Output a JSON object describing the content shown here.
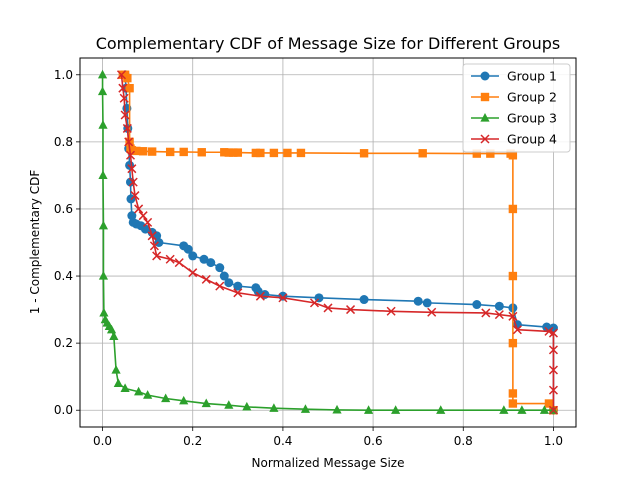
{
  "chart_data": {
    "type": "line",
    "title": "Complementary CDF of Message Size for Different Groups",
    "xlabel": "Normalized Message Size",
    "ylabel": "1 - Complementary CDF",
    "xlim": [
      -0.05,
      1.05
    ],
    "ylim": [
      -0.05,
      1.05
    ],
    "xticks": [
      "0.0",
      "0.2",
      "0.4",
      "0.6",
      "0.8",
      "1.0"
    ],
    "yticks": [
      "0.0",
      "0.2",
      "0.4",
      "0.6",
      "0.8",
      "1.0"
    ],
    "grid": true,
    "legend_position": "top-right",
    "series": [
      {
        "name": "Group 1",
        "color": "#1f77b4",
        "marker": "circle",
        "points": [
          [
            0.05,
            1.0
          ],
          [
            0.052,
            0.96
          ],
          [
            0.054,
            0.9
          ],
          [
            0.056,
            0.84
          ],
          [
            0.058,
            0.78
          ],
          [
            0.06,
            0.73
          ],
          [
            0.062,
            0.68
          ],
          [
            0.063,
            0.63
          ],
          [
            0.065,
            0.58
          ],
          [
            0.068,
            0.56
          ],
          [
            0.075,
            0.555
          ],
          [
            0.085,
            0.55
          ],
          [
            0.095,
            0.54
          ],
          [
            0.11,
            0.53
          ],
          [
            0.12,
            0.52
          ],
          [
            0.125,
            0.5
          ],
          [
            0.18,
            0.49
          ],
          [
            0.19,
            0.48
          ],
          [
            0.2,
            0.46
          ],
          [
            0.225,
            0.45
          ],
          [
            0.24,
            0.44
          ],
          [
            0.26,
            0.425
          ],
          [
            0.27,
            0.4
          ],
          [
            0.28,
            0.38
          ],
          [
            0.3,
            0.37
          ],
          [
            0.34,
            0.365
          ],
          [
            0.345,
            0.355
          ],
          [
            0.36,
            0.345
          ],
          [
            0.4,
            0.34
          ],
          [
            0.48,
            0.335
          ],
          [
            0.58,
            0.33
          ],
          [
            0.7,
            0.325
          ],
          [
            0.72,
            0.32
          ],
          [
            0.83,
            0.315
          ],
          [
            0.88,
            0.31
          ],
          [
            0.91,
            0.305
          ],
          [
            0.92,
            0.255
          ],
          [
            0.985,
            0.248
          ],
          [
            1.0,
            0.245
          ],
          [
            1.0,
            0.0
          ]
        ]
      },
      {
        "name": "Group 2",
        "color": "#ff7f0e",
        "marker": "square",
        "points": [
          [
            0.045,
            1.0
          ],
          [
            0.05,
            1.0
          ],
          [
            0.055,
            0.99
          ],
          [
            0.06,
            0.96
          ],
          [
            0.06,
            0.8
          ],
          [
            0.062,
            0.78
          ],
          [
            0.065,
            0.775
          ],
          [
            0.075,
            0.773
          ],
          [
            0.09,
            0.772
          ],
          [
            0.11,
            0.771
          ],
          [
            0.15,
            0.77
          ],
          [
            0.18,
            0.77
          ],
          [
            0.22,
            0.769
          ],
          [
            0.27,
            0.769
          ],
          [
            0.28,
            0.768
          ],
          [
            0.29,
            0.768
          ],
          [
            0.3,
            0.768
          ],
          [
            0.34,
            0.767
          ],
          [
            0.35,
            0.767
          ],
          [
            0.38,
            0.767
          ],
          [
            0.41,
            0.767
          ],
          [
            0.44,
            0.767
          ],
          [
            0.58,
            0.766
          ],
          [
            0.71,
            0.766
          ],
          [
            0.83,
            0.765
          ],
          [
            0.86,
            0.765
          ],
          [
            0.905,
            0.765
          ],
          [
            0.91,
            0.76
          ],
          [
            0.91,
            0.6
          ],
          [
            0.91,
            0.4
          ],
          [
            0.91,
            0.2
          ],
          [
            0.91,
            0.05
          ],
          [
            0.91,
            0.02
          ],
          [
            0.99,
            0.02
          ],
          [
            1.0,
            0.0
          ]
        ]
      },
      {
        "name": "Group 3",
        "color": "#2ca02c",
        "marker": "triangle",
        "points": [
          [
            0.0,
            1.0
          ],
          [
            0.0,
            0.95
          ],
          [
            0.001,
            0.85
          ],
          [
            0.001,
            0.7
          ],
          [
            0.002,
            0.55
          ],
          [
            0.002,
            0.4
          ],
          [
            0.003,
            0.29
          ],
          [
            0.006,
            0.27
          ],
          [
            0.01,
            0.26
          ],
          [
            0.015,
            0.25
          ],
          [
            0.02,
            0.24
          ],
          [
            0.025,
            0.22
          ],
          [
            0.03,
            0.12
          ],
          [
            0.035,
            0.08
          ],
          [
            0.05,
            0.065
          ],
          [
            0.08,
            0.055
          ],
          [
            0.1,
            0.045
          ],
          [
            0.14,
            0.035
          ],
          [
            0.18,
            0.028
          ],
          [
            0.23,
            0.02
          ],
          [
            0.28,
            0.015
          ],
          [
            0.32,
            0.01
          ],
          [
            0.38,
            0.006
          ],
          [
            0.45,
            0.003
          ],
          [
            0.52,
            0.001
          ],
          [
            0.59,
            0.0
          ],
          [
            0.65,
            0.0
          ],
          [
            0.75,
            0.0
          ],
          [
            0.89,
            0.0
          ],
          [
            0.93,
            0.0
          ],
          [
            0.98,
            0.0
          ],
          [
            1.0,
            0.0
          ]
        ]
      },
      {
        "name": "Group 4",
        "color": "#d62728",
        "marker": "x",
        "points": [
          [
            0.042,
            1.0
          ],
          [
            0.045,
            0.96
          ],
          [
            0.048,
            0.93
          ],
          [
            0.05,
            0.88
          ],
          [
            0.055,
            0.84
          ],
          [
            0.058,
            0.8
          ],
          [
            0.062,
            0.76
          ],
          [
            0.065,
            0.72
          ],
          [
            0.068,
            0.68
          ],
          [
            0.072,
            0.64
          ],
          [
            0.08,
            0.6
          ],
          [
            0.09,
            0.58
          ],
          [
            0.1,
            0.56
          ],
          [
            0.11,
            0.52
          ],
          [
            0.115,
            0.49
          ],
          [
            0.12,
            0.46
          ],
          [
            0.15,
            0.45
          ],
          [
            0.17,
            0.44
          ],
          [
            0.2,
            0.41
          ],
          [
            0.23,
            0.39
          ],
          [
            0.26,
            0.37
          ],
          [
            0.3,
            0.35
          ],
          [
            0.35,
            0.34
          ],
          [
            0.4,
            0.335
          ],
          [
            0.47,
            0.32
          ],
          [
            0.5,
            0.305
          ],
          [
            0.55,
            0.3
          ],
          [
            0.64,
            0.295
          ],
          [
            0.73,
            0.292
          ],
          [
            0.85,
            0.29
          ],
          [
            0.88,
            0.285
          ],
          [
            0.91,
            0.28
          ],
          [
            0.92,
            0.24
          ],
          [
            0.99,
            0.235
          ],
          [
            1.0,
            0.23
          ],
          [
            1.0,
            0.18
          ],
          [
            1.0,
            0.12
          ],
          [
            1.0,
            0.06
          ],
          [
            1.0,
            0.0
          ]
        ]
      }
    ]
  }
}
